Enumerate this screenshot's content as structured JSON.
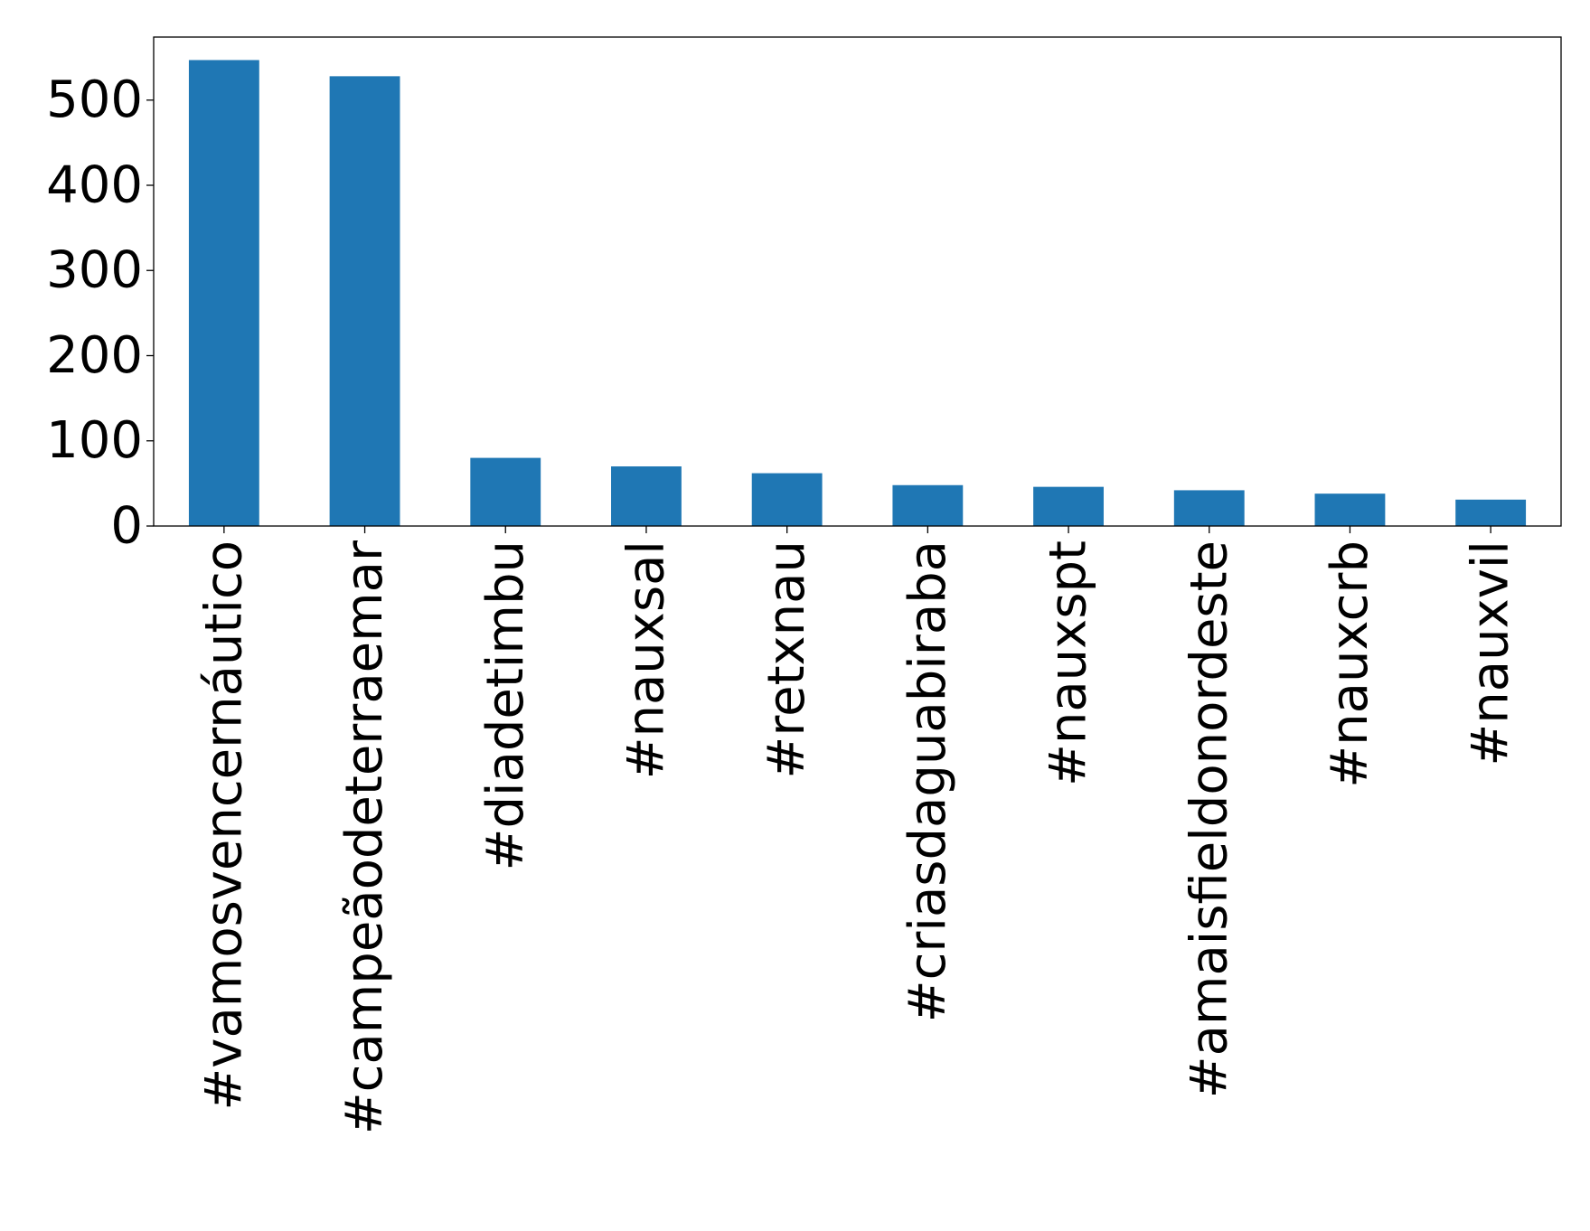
{
  "chart_data": {
    "type": "bar",
    "title": "",
    "xlabel": "",
    "ylabel": "",
    "categories": [
      "#vamosvencernáutico",
      "#campeãodeterraemar",
      "#diadetimbu",
      "#nauxsal",
      "#retxnau",
      "#criasdaguabiraba",
      "#nauxspt",
      "#amaisfieldonordeste",
      "#nauxcrb",
      "#nauxvil"
    ],
    "values": [
      547,
      528,
      80,
      70,
      62,
      48,
      46,
      42,
      38,
      31
    ],
    "yticks": [
      0,
      100,
      200,
      300,
      400,
      500
    ],
    "ylim": [
      0,
      574
    ],
    "bar_color": "#1f77b4",
    "grid": false,
    "legend": "none"
  }
}
